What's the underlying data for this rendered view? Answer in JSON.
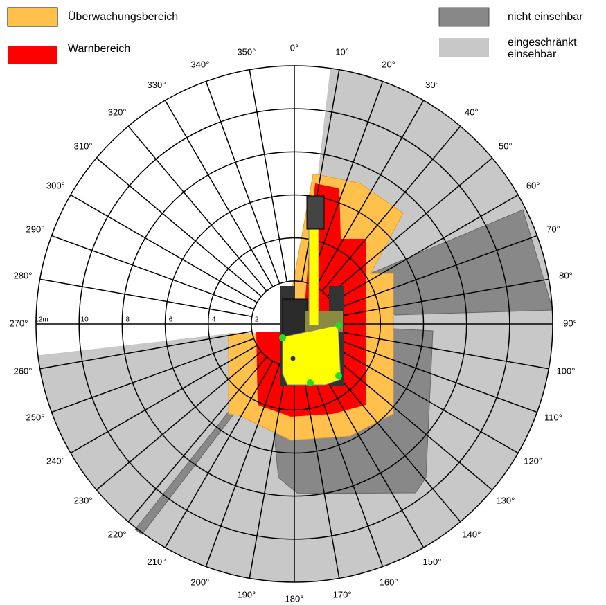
{
  "legend": [
    {
      "label": "Überwachungsbereich"
    },
    {
      "label": "Warnbereich"
    },
    {
      "label": "nicht einsehbar"
    },
    {
      "label": "eingeschränkt einsehbar",
      "lines": [
        "eingeschränkt",
        "einsehbar"
      ]
    }
  ],
  "angle_labels": [
    "0°",
    "10°",
    "20°",
    "30°",
    "40°",
    "50°",
    "60°",
    "70°",
    "80°",
    "90°",
    "100°",
    "110°",
    "120°",
    "130°",
    "140°",
    "150°",
    "160°",
    "170°",
    "180°",
    "190°",
    "200°",
    "210°",
    "220°",
    "230°",
    "240°",
    "250°",
    "260°",
    "270°",
    "280°",
    "290°",
    "300°",
    "310°",
    "320°",
    "330°",
    "340°",
    "350°"
  ],
  "radius_labels": [
    "2",
    "4",
    "6",
    "8",
    "10",
    "12m"
  ]
}
